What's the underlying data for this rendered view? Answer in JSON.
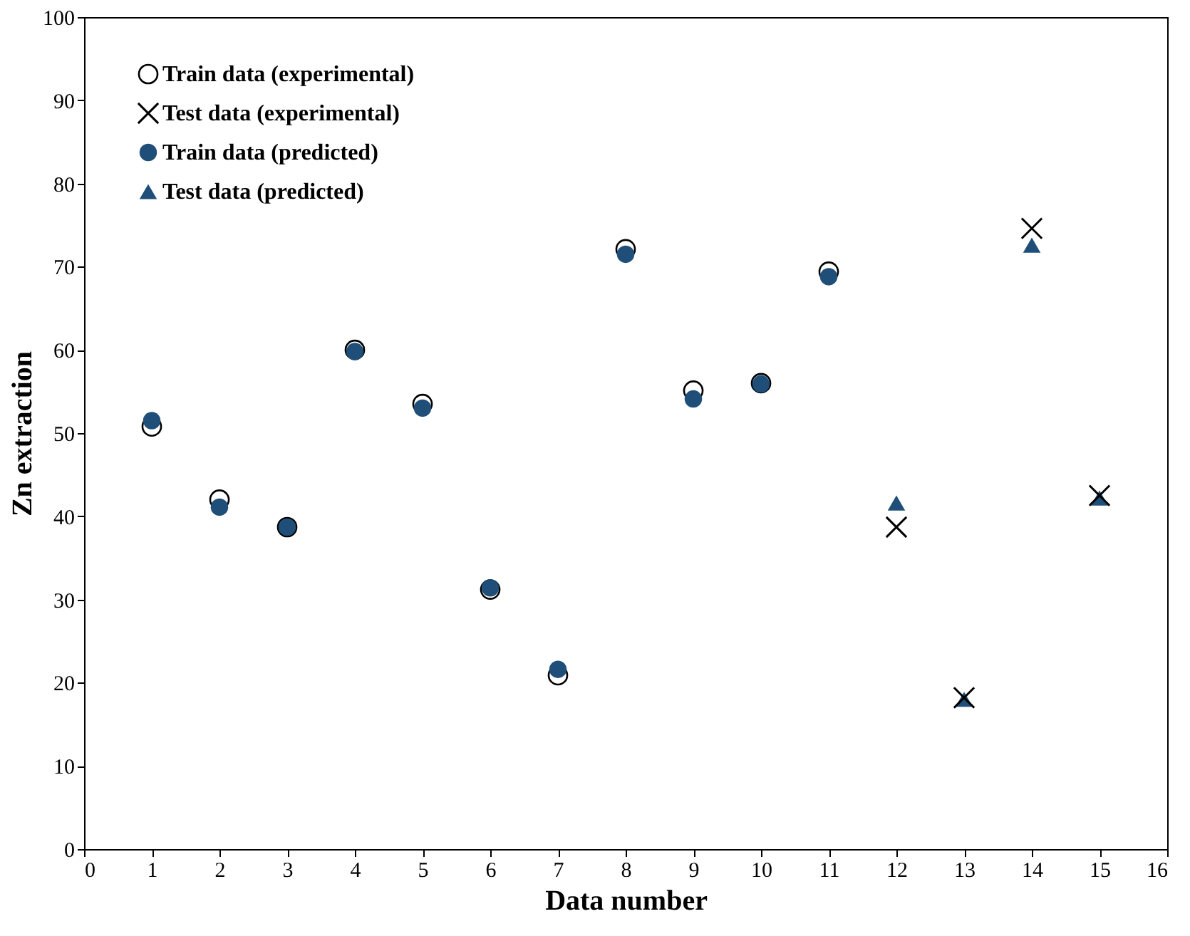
{
  "chart_data": {
    "type": "scatter",
    "xlabel": "Data number",
    "ylabel": "Zn extraction",
    "xlim": [
      0,
      16
    ],
    "xticks": [
      0,
      1,
      2,
      3,
      4,
      5,
      6,
      7,
      8,
      9,
      10,
      11,
      12,
      13,
      14,
      15,
      16
    ],
    "ylim": [
      0,
      100
    ],
    "yticks": [
      0,
      10,
      20,
      30,
      40,
      50,
      60,
      70,
      80,
      90,
      100
    ],
    "grid": false,
    "legend": "top left",
    "series": [
      {
        "name": "Train data (experimental)",
        "color": "#000000",
        "marker": "circle",
        "x": [
          1,
          2,
          3,
          4,
          5,
          6,
          7,
          8,
          9,
          10,
          11
        ],
        "values": [
          50.8,
          42.0,
          38.7,
          60.0,
          53.5,
          31.2,
          20.9,
          72.1,
          55.1,
          56.0,
          69.4
        ]
      },
      {
        "name": "Test data (experimental)",
        "color": "#000000",
        "marker": "cross",
        "x": [
          12,
          13,
          14,
          15
        ],
        "values": [
          38.7,
          18.2,
          74.6,
          42.5
        ]
      },
      {
        "name": "Train data (predicted)",
        "color": "#1f4e79",
        "marker": "circle",
        "x": [
          1,
          2,
          3,
          4,
          5,
          6,
          7,
          8,
          9,
          10,
          11
        ],
        "values": [
          51.5,
          41.1,
          38.7,
          59.8,
          53.0,
          31.4,
          21.6,
          71.5,
          54.1,
          55.9,
          68.8
        ]
      },
      {
        "name": "Test data (predicted)",
        "color": "#1f4e79",
        "marker": "triangle",
        "x": [
          12,
          13,
          14,
          15
        ],
        "values": [
          41.6,
          18.0,
          72.6,
          42.2
        ]
      }
    ]
  }
}
